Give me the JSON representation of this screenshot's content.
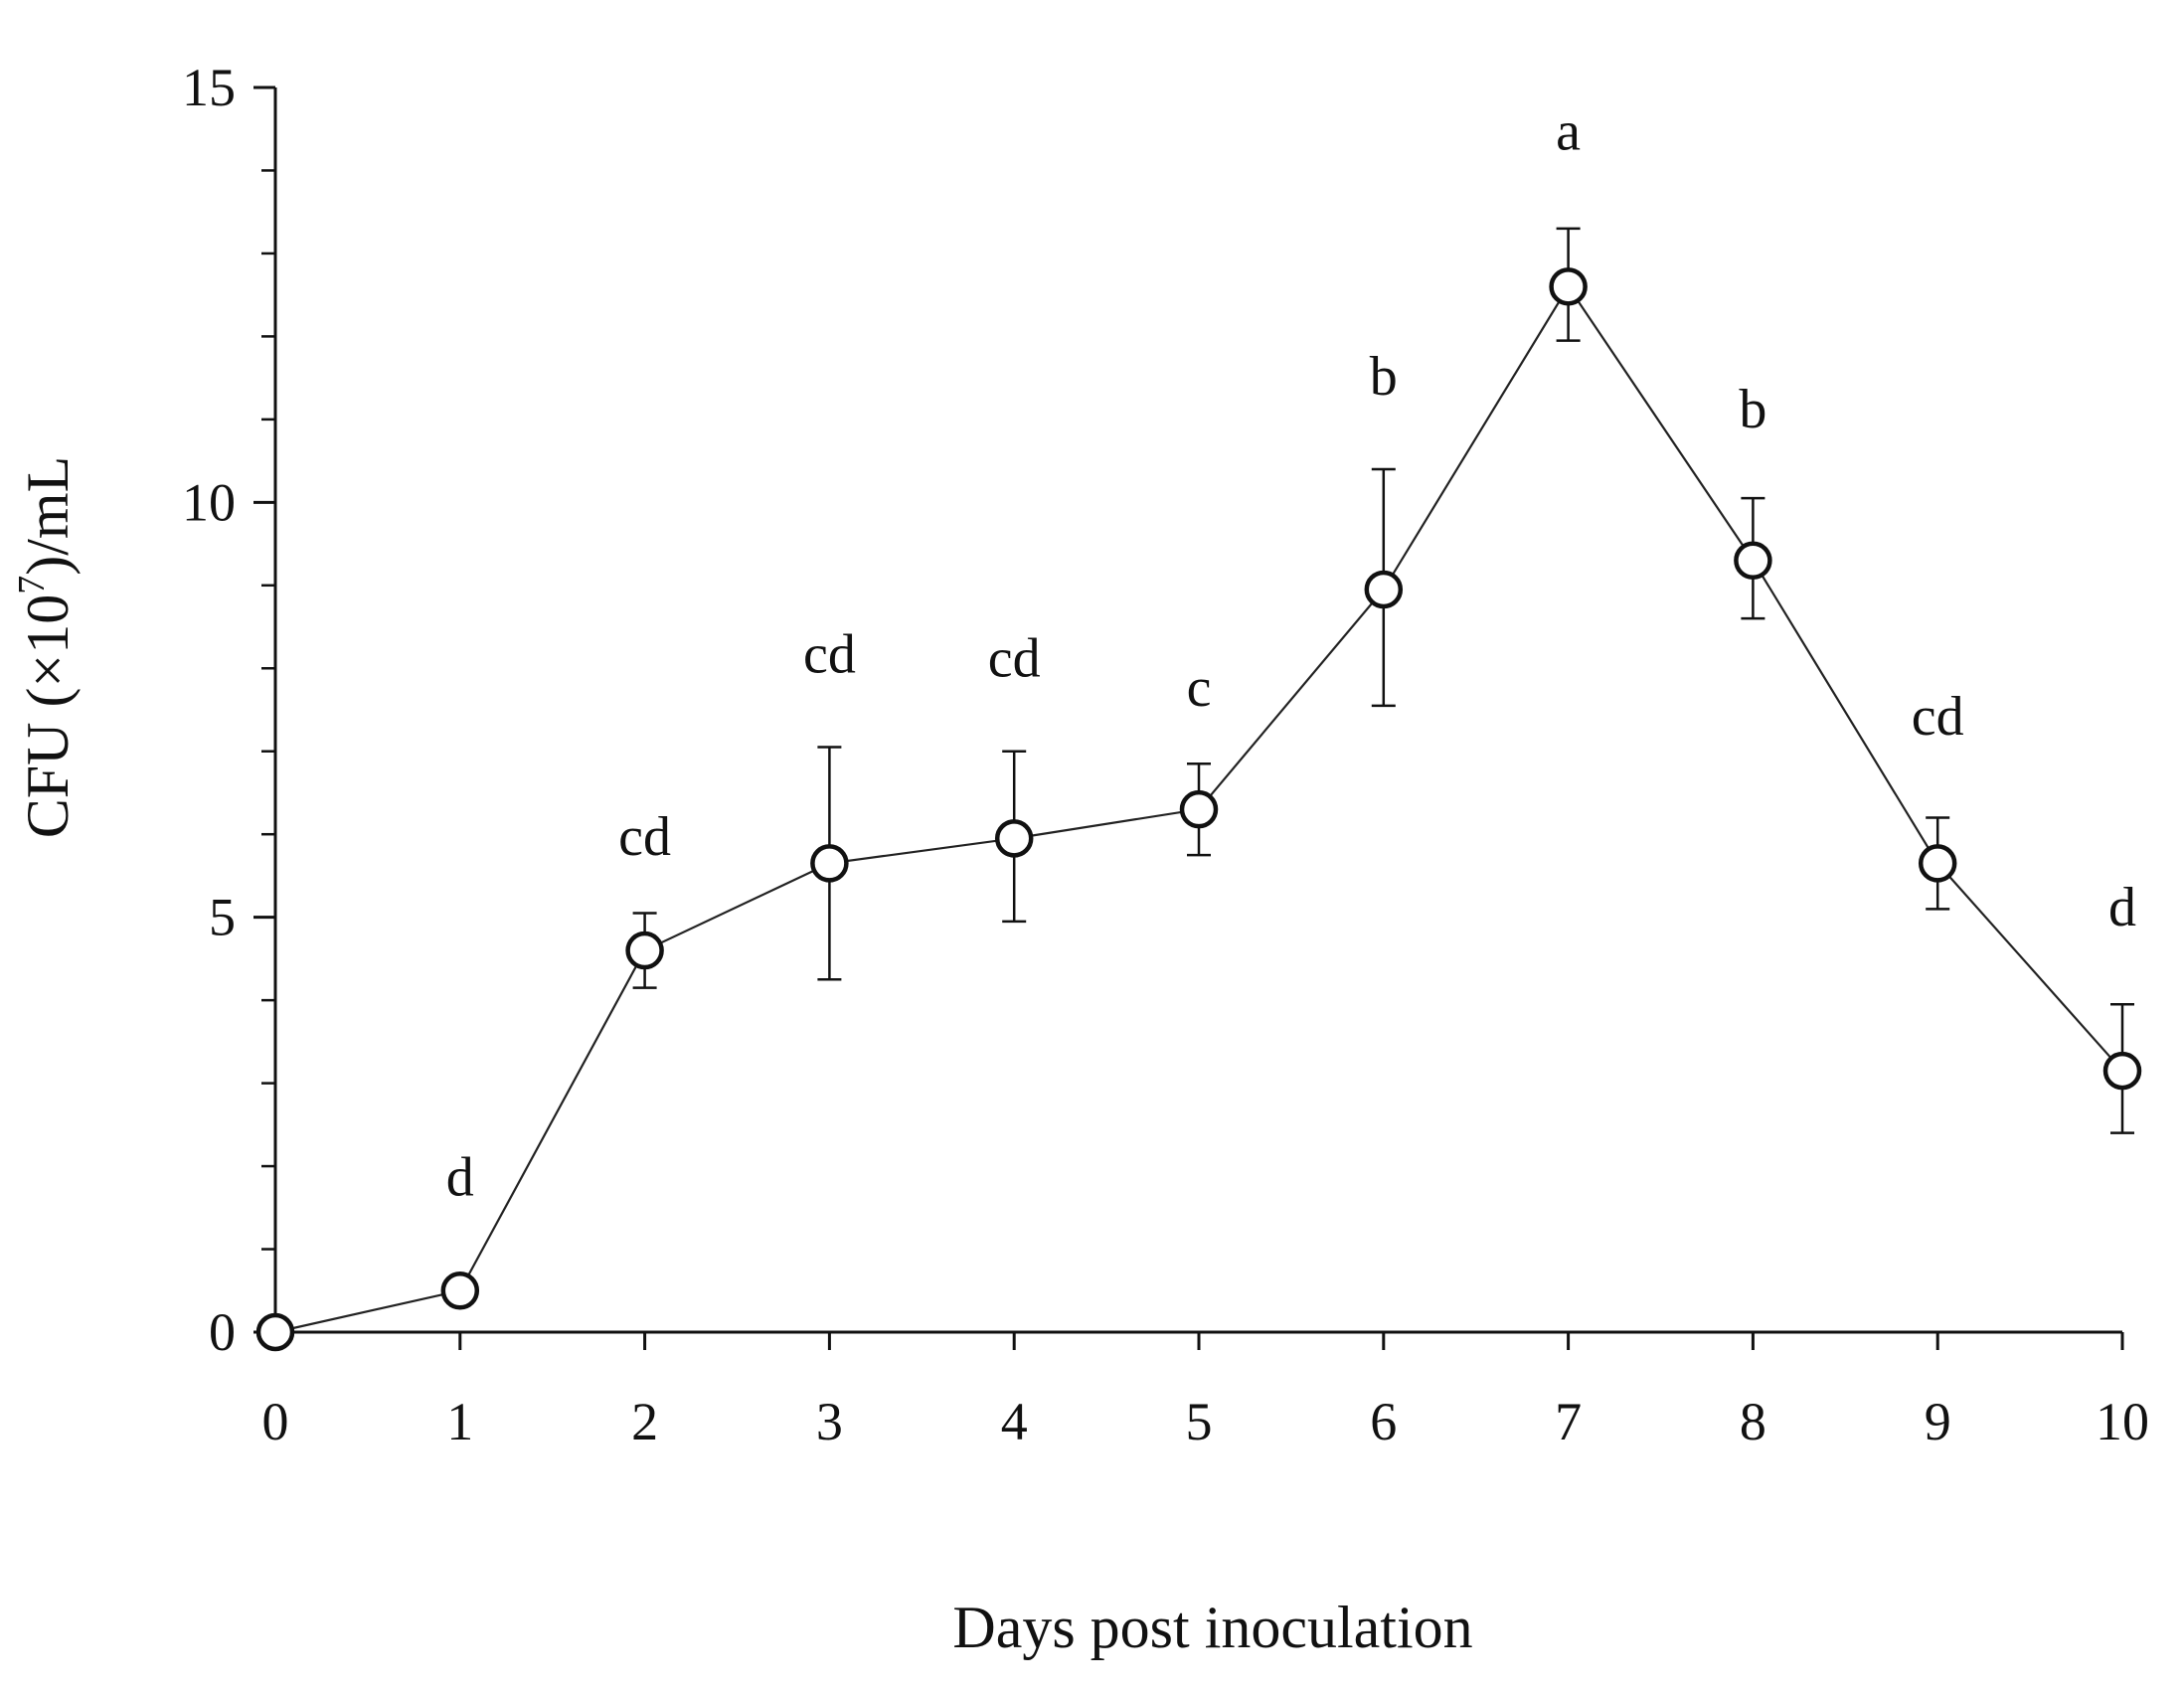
{
  "chart_data": {
    "type": "line",
    "title": "",
    "xlabel": "Days post inoculation",
    "ylabel": "CFU (×10⁷)/mL",
    "ylabel_parts": {
      "prefix": "CFU (×10",
      "exponent": "7",
      "suffix": ")/mL"
    },
    "xlim": [
      0,
      10
    ],
    "ylim": [
      0,
      15
    ],
    "x_ticks": [
      0,
      1,
      2,
      3,
      4,
      5,
      6,
      7,
      8,
      9,
      10
    ],
    "y_ticks": [
      0,
      5,
      10,
      15
    ],
    "y_minor_step": 1,
    "grid": false,
    "marker": "open-circle",
    "series": [
      {
        "name": "CFU",
        "x": [
          0,
          1,
          2,
          3,
          4,
          5,
          6,
          7,
          8,
          9,
          10
        ],
        "y": [
          0,
          0.5,
          4.6,
          5.65,
          5.95,
          6.3,
          8.95,
          12.6,
          9.3,
          5.65,
          3.15
        ],
        "err_upper": [
          0,
          0.55,
          5.05,
          7.05,
          7.0,
          6.85,
          10.4,
          13.3,
          10.05,
          6.2,
          3.95
        ],
        "err_lower": [
          0,
          0.45,
          4.15,
          4.25,
          4.95,
          5.75,
          7.55,
          11.95,
          8.6,
          5.1,
          2.4
        ],
        "labels": [
          "",
          "d",
          "cd",
          "cd",
          "cd",
          "c",
          "b",
          "a",
          "b",
          "cd",
          "d"
        ],
        "label_y": [
          null,
          1.65,
          5.75,
          7.95,
          7.9,
          7.55,
          11.3,
          14.25,
          10.9,
          7.2,
          4.9
        ]
      }
    ]
  }
}
